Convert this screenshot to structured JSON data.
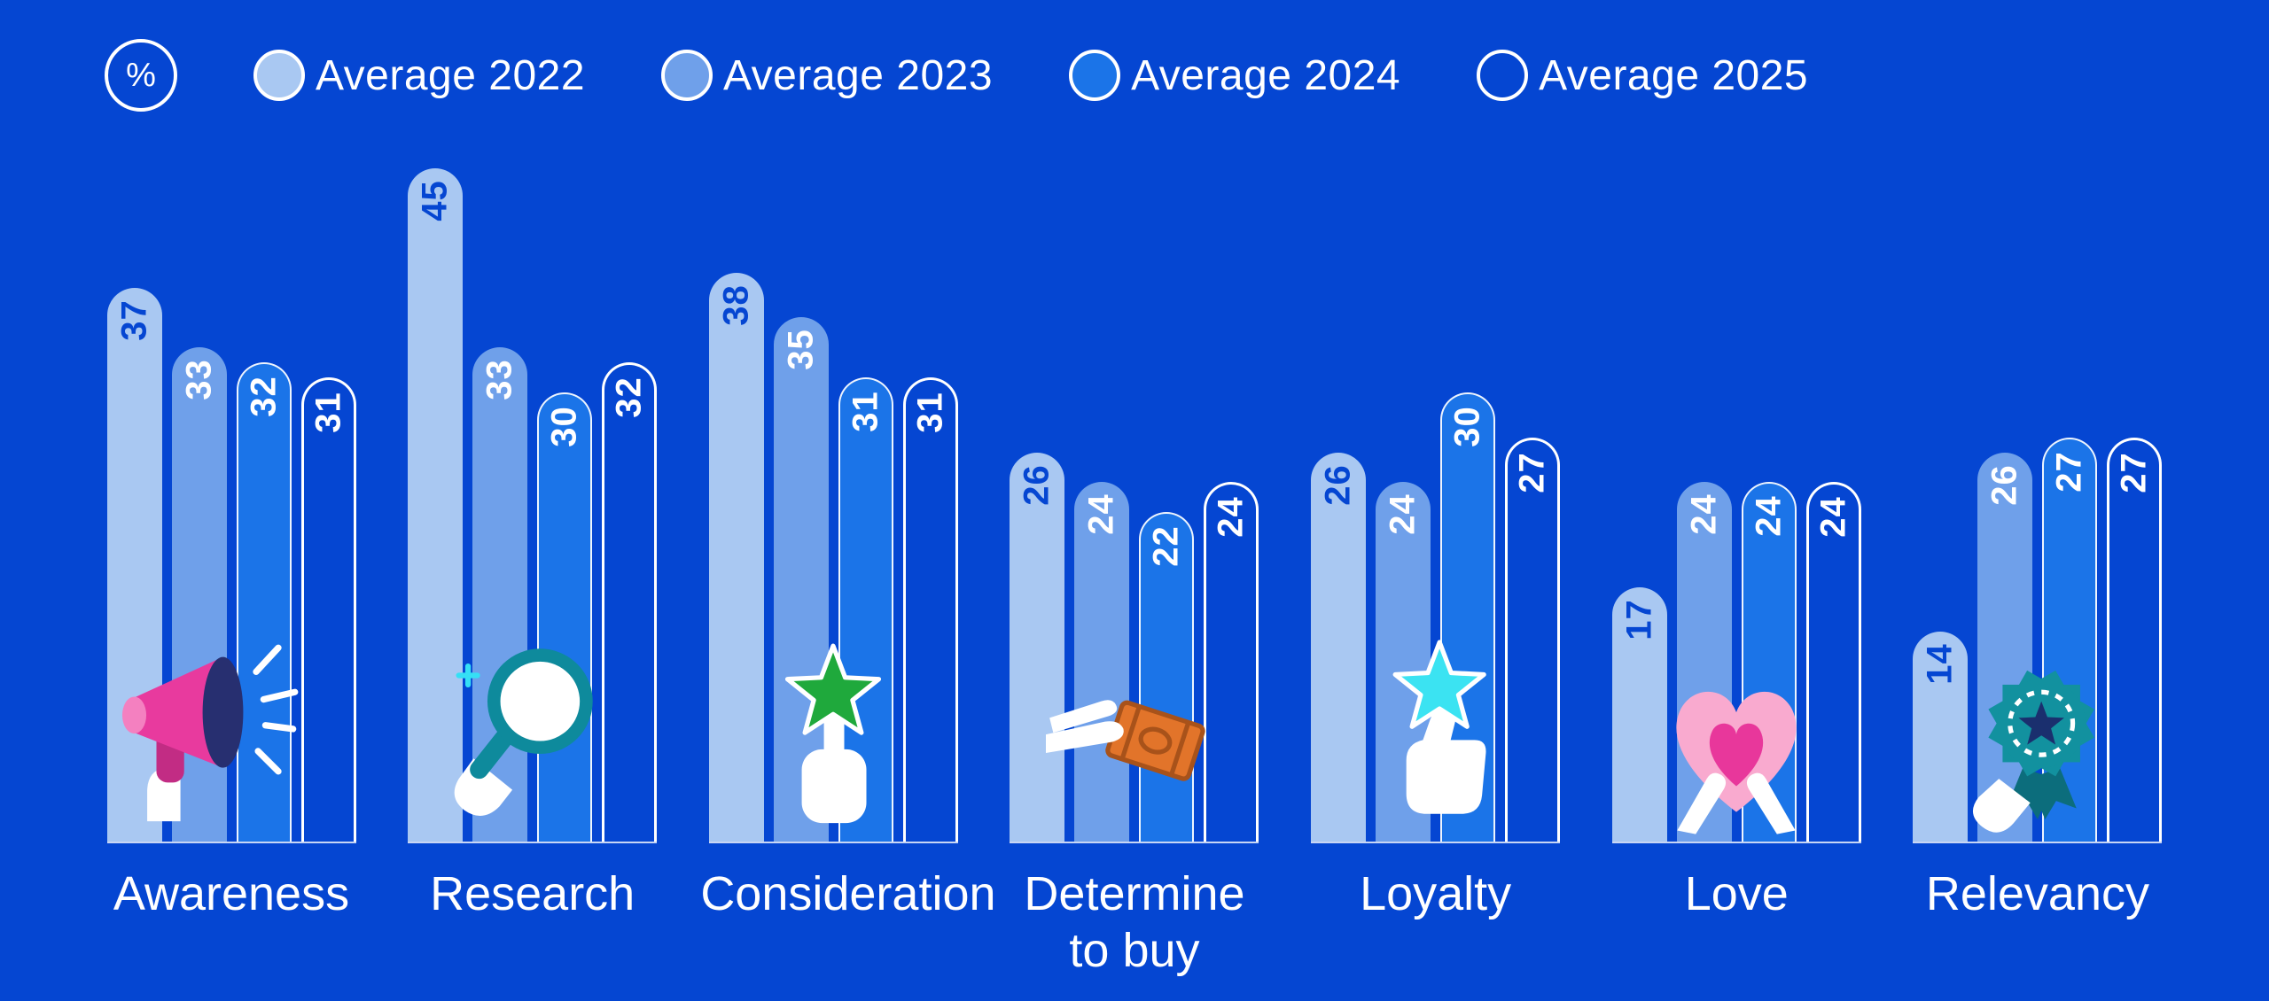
{
  "background_color": "#0546D2",
  "legend": {
    "percent_symbol": "%",
    "items": [
      {
        "label": "Average 2022",
        "color": "#A9C8F2"
      },
      {
        "label": "Average 2023",
        "color": "#6FA0EA"
      },
      {
        "label": "Average 2024",
        "color": "#1B74E8"
      },
      {
        "label": "Average 2025",
        "color": "transparent"
      }
    ]
  },
  "chart_data": {
    "type": "bar",
    "title": "",
    "unit": "%",
    "categories": [
      "Awareness",
      "Research",
      "Consideration",
      "Determine to buy",
      "Loyalty",
      "Love",
      "Relevancy"
    ],
    "series": [
      {
        "name": "Average 2022",
        "values": [
          37,
          45,
          38,
          26,
          26,
          17,
          14
        ]
      },
      {
        "name": "Average 2023",
        "values": [
          33,
          33,
          35,
          24,
          24,
          24,
          26
        ]
      },
      {
        "name": "Average 2024",
        "values": [
          32,
          30,
          31,
          22,
          30,
          24,
          27
        ]
      },
      {
        "name": "Average 2025",
        "values": [
          31,
          32,
          31,
          24,
          27,
          24,
          27
        ]
      }
    ],
    "ylim": [
      0,
      45
    ],
    "grid": false,
    "legend_position": "top-left",
    "value_labels": "rotated-vertical-at-bar-top",
    "icons": [
      "megaphone",
      "magnifying-glass",
      "green-star",
      "hand-with-cash",
      "cyan-star-thumbs-up",
      "heart-hands",
      "award-badge"
    ]
  }
}
